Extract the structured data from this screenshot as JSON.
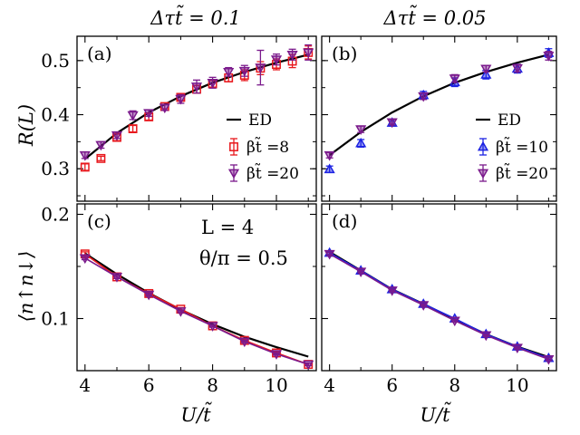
{
  "chart_data": {
    "type": "line",
    "title_left": "Δτt̃ = 0.1",
    "title_right": "Δτt̃ = 0.05",
    "xlabel": "U/t̃",
    "ylabel_top": "R(L)",
    "ylabel_bottom": "⟨n↑n↓⟩",
    "xlim": [
      3.75,
      11.25
    ],
    "xticks": [
      4,
      6,
      8,
      10
    ],
    "top_ylim": [
      0.24,
      0.545
    ],
    "top_yticks": [
      0.3,
      0.4,
      0.5
    ],
    "bottom_ylim": [
      0.05,
      0.21
    ],
    "bottom_yticks": [
      0.1,
      0.2
    ],
    "annotations": [
      "L = 4",
      "θ/π = 0.5"
    ],
    "colors": {
      "ed": "#000000",
      "red": "#e8181d",
      "purple": "#7b1a8c",
      "blue": "#1d23e3"
    },
    "panels": [
      {
        "id": "a",
        "label": "(a)",
        "row": "top",
        "col": "left",
        "ed": {
          "x": [
            4,
            5,
            6,
            7,
            8,
            9,
            10,
            11
          ],
          "y": [
            0.318,
            0.366,
            0.404,
            0.434,
            0.459,
            0.479,
            0.496,
            0.511
          ]
        },
        "series": [
          {
            "name": "βt̃ =8",
            "color": "#e8181d",
            "marker": "square",
            "x": [
              4,
              4.5,
              5,
              5.5,
              6,
              6.5,
              7,
              7.5,
              8,
              8.5,
              9,
              9.5,
              10,
              10.5,
              11
            ],
            "y": [
              0.303,
              0.319,
              0.358,
              0.374,
              0.396,
              0.415,
              0.432,
              0.447,
              0.457,
              0.468,
              0.473,
              0.486,
              0.493,
              0.499,
              0.515
            ],
            "err": [
              0.006,
              0.004,
              0.006,
              0.006,
              0.006,
              0.004,
              0.006,
              0.007,
              0.006,
              0.007,
              0.01,
              0.012,
              0.01,
              0.012,
              0.012
            ]
          },
          {
            "name": "βt̃ =20",
            "color": "#7b1a8c",
            "marker": "triangle-down",
            "x": [
              4,
              4.5,
              5,
              5.5,
              6,
              6.5,
              7,
              7.5,
              8,
              8.5,
              9,
              9.5,
              10,
              10.5,
              11
            ],
            "y": [
              0.325,
              0.344,
              0.362,
              0.399,
              0.403,
              0.413,
              0.429,
              0.452,
              0.459,
              0.479,
              0.481,
              0.487,
              0.502,
              0.511,
              0.515
            ],
            "err": [
              0.006,
              0.006,
              0.006,
              0.008,
              0.006,
              0.005,
              0.008,
              0.012,
              0.01,
              0.008,
              0.01,
              0.032,
              0.01,
              0.01,
              0.014
            ]
          }
        ],
        "legend": {
          "ed_label": "ED",
          "position": "lower-right"
        }
      },
      {
        "id": "b",
        "label": "(b)",
        "row": "top",
        "col": "right",
        "ed": {
          "x": [
            4,
            5,
            6,
            7,
            8,
            9,
            10,
            11
          ],
          "y": [
            0.325,
            0.368,
            0.404,
            0.434,
            0.459,
            0.479,
            0.496,
            0.511
          ]
        },
        "series": [
          {
            "name": "βt̃ =10",
            "color": "#1d23e3",
            "marker": "triangle-up",
            "x": [
              4,
              5,
              6,
              7,
              8,
              9,
              10,
              11
            ],
            "y": [
              0.299,
              0.347,
              0.385,
              0.436,
              0.46,
              0.474,
              0.485,
              0.514
            ],
            "err": [
              0.006,
              0.007,
              0.006,
              0.007,
              0.008,
              0.008,
              0.008,
              0.008
            ]
          },
          {
            "name": "βt̃ =20",
            "color": "#7b1a8c",
            "marker": "triangle-down",
            "x": [
              4,
              5,
              6,
              7,
              8,
              9,
              10,
              11
            ],
            "y": [
              0.325,
              0.373,
              0.386,
              0.434,
              0.467,
              0.485,
              0.486,
              0.509
            ],
            "err": [
              0.005,
              0.006,
              0.005,
              0.006,
              0.007,
              0.006,
              0.007,
              0.008
            ]
          }
        ],
        "legend": {
          "ed_label": "ED",
          "position": "lower-right"
        }
      },
      {
        "id": "c",
        "label": "(c)",
        "row": "bottom",
        "col": "left",
        "ed": {
          "x": [
            4,
            5,
            6,
            7,
            8,
            9,
            10,
            11
          ],
          "y": [
            0.1625,
            0.1425,
            0.1245,
            0.1085,
            0.0945,
            0.0825,
            0.0725,
            0.0635
          ]
        },
        "series": [
          {
            "name": "βt̃ =8",
            "color": "#e8181d",
            "marker": "square",
            "x": [
              4,
              5,
              6,
              7,
              8,
              9,
              10,
              11
            ],
            "y": [
              0.162,
              0.14,
              0.124,
              0.109,
              0.093,
              0.079,
              0.067,
              0.056
            ],
            "err": [
              0.002,
              0.0015,
              0.0015,
              0.0015,
              0.0012,
              0.0012,
              0.0012,
              0.0012
            ]
          },
          {
            "name": "βt̃ =20",
            "color": "#7b1a8c",
            "marker": "triangle-down",
            "x": [
              4,
              5,
              6,
              7,
              8,
              9,
              10,
              11
            ],
            "y": [
              0.158,
              0.14,
              0.123,
              0.107,
              0.093,
              0.078,
              0.066,
              0.056
            ],
            "err": [
              0.0015,
              0.0015,
              0.0015,
              0.0012,
              0.0012,
              0.0012,
              0.0012,
              0.0012
            ]
          }
        ],
        "legend": null
      },
      {
        "id": "d",
        "label": "(d)",
        "row": "bottom",
        "col": "right",
        "ed": {
          "x": [
            4,
            5,
            6,
            7,
            8,
            9,
            10,
            11
          ],
          "y": [
            0.164,
            0.146,
            0.128,
            0.114,
            0.099,
            0.085,
            0.073,
            0.063
          ]
        },
        "series": [
          {
            "name": "βt̃ =10",
            "color": "#1d23e3",
            "marker": "triangle-up",
            "x": [
              4,
              5,
              6,
              7,
              8,
              9,
              10,
              11
            ],
            "y": [
              0.163,
              0.146,
              0.128,
              0.114,
              0.1,
              0.085,
              0.073,
              0.062
            ],
            "err": [
              0.0015,
              0.0015,
              0.0012,
              0.0012,
              0.0012,
              0.0012,
              0.0012,
              0.0012
            ]
          },
          {
            "name": "βt̃ =20",
            "color": "#7b1a8c",
            "marker": "triangle-down",
            "x": [
              4,
              5,
              6,
              7,
              8,
              9,
              10,
              11
            ],
            "y": [
              0.162,
              0.145,
              0.127,
              0.113,
              0.098,
              0.084,
              0.072,
              0.061
            ],
            "err": [
              0.0015,
              0.0012,
              0.0012,
              0.0012,
              0.0012,
              0.0012,
              0.0012,
              0.0012
            ]
          }
        ],
        "legend": null
      }
    ]
  }
}
